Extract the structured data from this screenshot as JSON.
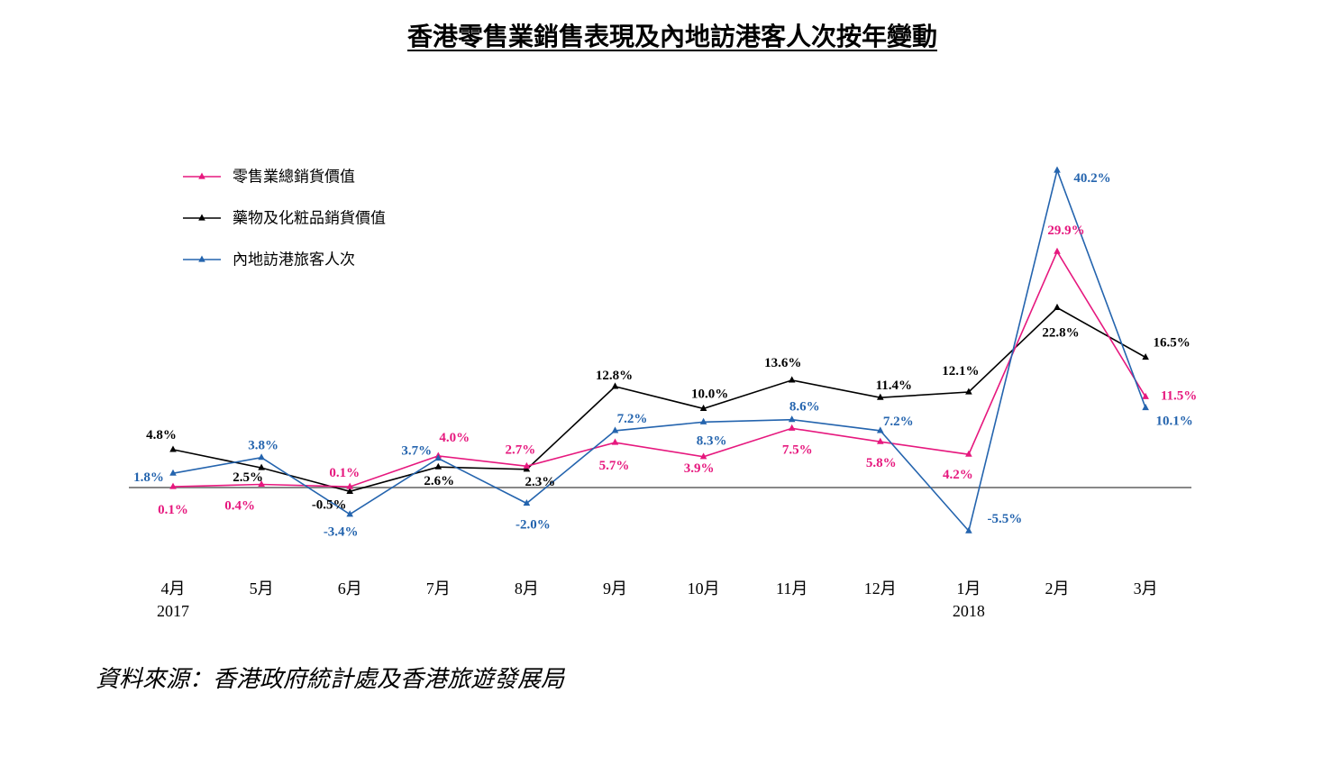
{
  "source": "資料來源：香港政府統計處及香港旅遊發展局",
  "chart_data": {
    "type": "line",
    "title": "香港零售業銷售表現及內地訪港客人次按年變動",
    "xlabel": "",
    "ylabel": "",
    "categories": [
      "4月",
      "5月",
      "6月",
      "7月",
      "8月",
      "9月",
      "10月",
      "11月",
      "12月",
      "1月",
      "2月",
      "3月"
    ],
    "category_years": [
      "2017",
      "",
      "",
      "",
      "",
      "",
      "",
      "",
      "",
      "2018",
      "",
      ""
    ],
    "ylim": [
      -8,
      45
    ],
    "hline": 0,
    "hline_color": "#888888",
    "grid": false,
    "legend_position": "top-left",
    "series": [
      {
        "name": "零售業總銷貨價值",
        "color": "#e6187e",
        "values": [
          0.1,
          0.4,
          0.1,
          4.0,
          2.7,
          5.7,
          3.9,
          7.5,
          5.8,
          4.2,
          29.9,
          11.5
        ],
        "labels": [
          "0.1%",
          "0.4%",
          "0.1%",
          "4.0%",
          "2.7%",
          "5.7%",
          "3.9%",
          "7.5%",
          "5.8%",
          "4.2%",
          "29.9%",
          "11.5%"
        ]
      },
      {
        "name": "藥物及化粧品銷貨價值",
        "color": "#000000",
        "values": [
          4.8,
          2.5,
          -0.5,
          2.6,
          2.3,
          12.8,
          10.0,
          13.6,
          11.4,
          12.1,
          22.8,
          16.5
        ],
        "labels": [
          "4.8%",
          "2.5%",
          "-0.5%",
          "2.6%",
          "2.3%",
          "12.8%",
          "10.0%",
          "13.6%",
          "11.4%",
          "12.1%",
          "22.8%",
          "16.5%"
        ]
      },
      {
        "name": "內地訪港旅客人次",
        "color": "#2464ae",
        "values": [
          1.8,
          3.8,
          -3.4,
          3.7,
          -2.0,
          7.2,
          8.3,
          8.6,
          7.2,
          -5.5,
          40.2,
          10.1
        ],
        "labels": [
          "1.8%",
          "3.8%",
          "-3.4%",
          "3.7%",
          "-2.0%",
          "7.2%",
          "8.3%",
          "8.6%",
          "7.2%",
          "-5.5%",
          "40.2%",
          "10.1%"
        ]
      }
    ]
  }
}
